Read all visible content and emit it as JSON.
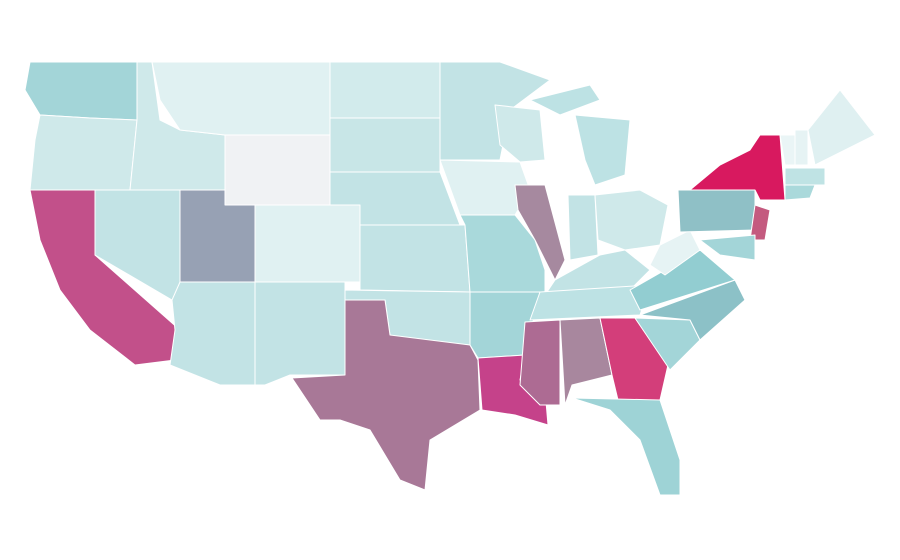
{
  "map": {
    "regions": [
      {
        "color": "#a3d5d8"
      },
      {
        "color": "#cfe9ea"
      },
      {
        "color": "#c2508a"
      },
      {
        "color": "#c2e3e5"
      },
      {
        "color": "#cfe9ea"
      },
      {
        "color": "#e0f1f2"
      },
      {
        "color": "#f0f2f4"
      },
      {
        "color": "#97a1b4"
      },
      {
        "color": "#e0f1f2"
      },
      {
        "color": "#c2e3e5"
      },
      {
        "color": "#c2e3e5"
      },
      {
        "color": "#d2ebec"
      },
      {
        "color": "#c8e6e7"
      },
      {
        "color": "#c2e3e5"
      },
      {
        "color": "#c2e3e5"
      },
      {
        "color": "#c2e3e5"
      },
      {
        "color": "#a87897"
      },
      {
        "color": "#c2e3e5"
      },
      {
        "color": "#e0f1f2"
      },
      {
        "color": "#a9d9db"
      },
      {
        "color": "#a3d5d8"
      },
      {
        "color": "#c5428a"
      },
      {
        "color": "#cfe9ea"
      },
      {
        "color": "#a6899f"
      },
      {
        "color": "#bde2e4"
      },
      {
        "color": "#bde2e4"
      },
      {
        "color": "#c2e3e5"
      },
      {
        "color": "#cfe9ea"
      },
      {
        "color": "#c2e3e5"
      },
      {
        "color": "#bde2e4"
      },
      {
        "color": "#ad6b93"
      },
      {
        "color": "#a8879e"
      },
      {
        "color": "#d33e7a"
      },
      {
        "color": "#9ed3d6"
      },
      {
        "color": "#a3d5d8"
      },
      {
        "color": "#8cc1c7"
      },
      {
        "color": "#92cdd1"
      },
      {
        "color": "#e6f3f4"
      },
      {
        "color": "#8fc0c6"
      },
      {
        "color": "#d8195f"
      },
      {
        "color": "#c45a7f"
      },
      {
        "color": "#a3d5d8"
      },
      {
        "color": "#eaf5f6"
      },
      {
        "color": "#e6f3f4"
      },
      {
        "color": "#dff0f1"
      },
      {
        "color": "#bfe3e4"
      },
      {
        "color": "#aad9db"
      }
    ]
  }
}
